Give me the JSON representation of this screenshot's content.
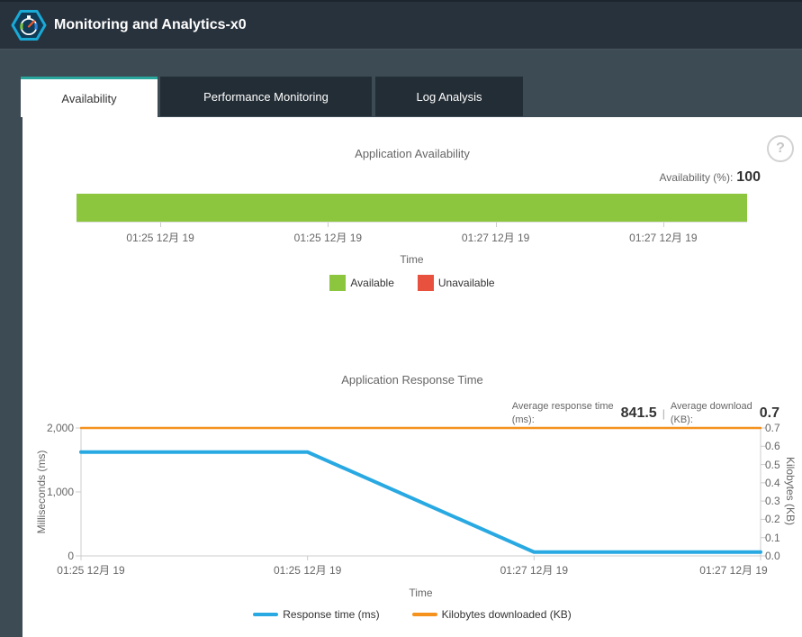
{
  "header": {
    "title": "Monitoring and Analytics-x0",
    "logo": "stopwatch-gauge-logo"
  },
  "tabs": [
    {
      "label": "Availability",
      "active": true
    },
    {
      "label": "Performance Monitoring",
      "active": false
    },
    {
      "label": "Log Analysis",
      "active": false
    }
  ],
  "help": {
    "glyph": "?"
  },
  "colors": {
    "header_bg": "#28323c",
    "band_bg": "#3d4b54",
    "inactive_tab_bg": "#232d35",
    "active_tab_accent": "#2aa79d",
    "available_green": "#8cc63e",
    "unavailable_red": "#e8513d",
    "response_blue": "#29a9e2",
    "download_orange": "#f5921e",
    "axis_gray": "#cccccc",
    "text_gray": "#666666"
  },
  "chart_data": [
    {
      "type": "bar",
      "title": "Application Availability",
      "stat_label": "Availability (%):",
      "stat_value": "100",
      "categories": [
        "01:25 12月 19",
        "01:25 12月 19",
        "01:27 12月 19",
        "01:27 12月 19"
      ],
      "values": [
        100,
        100,
        100,
        100
      ],
      "ylim": [
        0,
        100
      ],
      "xlabel": "Time",
      "bar_color": "#8cc63e",
      "legend": [
        {
          "label": "Available",
          "color": "#8cc63e"
        },
        {
          "label": "Unavailable",
          "color": "#e8513d"
        }
      ]
    },
    {
      "type": "line",
      "title": "Application Response Time",
      "stats": [
        {
          "label_line1": "Average response time",
          "label_line2": "(ms):",
          "value": "841.5"
        },
        {
          "label_line1": "Average download",
          "label_line2": "(KB):",
          "value": "0.7"
        }
      ],
      "stats_separator": "|",
      "x": [
        "01:25 12月 19",
        "01:25 12月 19",
        "01:27 12月 19",
        "01:27 12月 19"
      ],
      "series": [
        {
          "name": "Response time (ms)",
          "axis": "left",
          "color": "#29a9e2",
          "width": 4,
          "values": [
            1623,
            1623,
            60,
            60
          ]
        },
        {
          "name": "Kilobytes downloaded (KB)",
          "axis": "right",
          "color": "#f5921e",
          "width": 2.5,
          "values": [
            0.7,
            0.7,
            0.7,
            0.7
          ]
        }
      ],
      "left_axis": {
        "label": "Milliseconds (ms)",
        "range": [
          0,
          2000
        ],
        "ticks": [
          {
            "v": 2000,
            "label": "2,000"
          },
          {
            "v": 1000,
            "label": "1,000"
          },
          {
            "v": 0,
            "label": "0"
          }
        ]
      },
      "right_axis": {
        "label": "Kilobytes (KB)",
        "range": [
          0,
          0.7
        ],
        "ticks": [
          {
            "v": 0.7,
            "label": "0.7"
          },
          {
            "v": 0.6,
            "label": "0.6"
          },
          {
            "v": 0.5,
            "label": "0.5"
          },
          {
            "v": 0.4,
            "label": "0.4"
          },
          {
            "v": 0.3,
            "label": "0.3"
          },
          {
            "v": 0.2,
            "label": "0.2"
          },
          {
            "v": 0.1,
            "label": "0.1"
          },
          {
            "v": 0.0,
            "label": "0.0"
          }
        ]
      },
      "xlabel": "Time",
      "grid": false,
      "legend_position": "bottom"
    }
  ]
}
